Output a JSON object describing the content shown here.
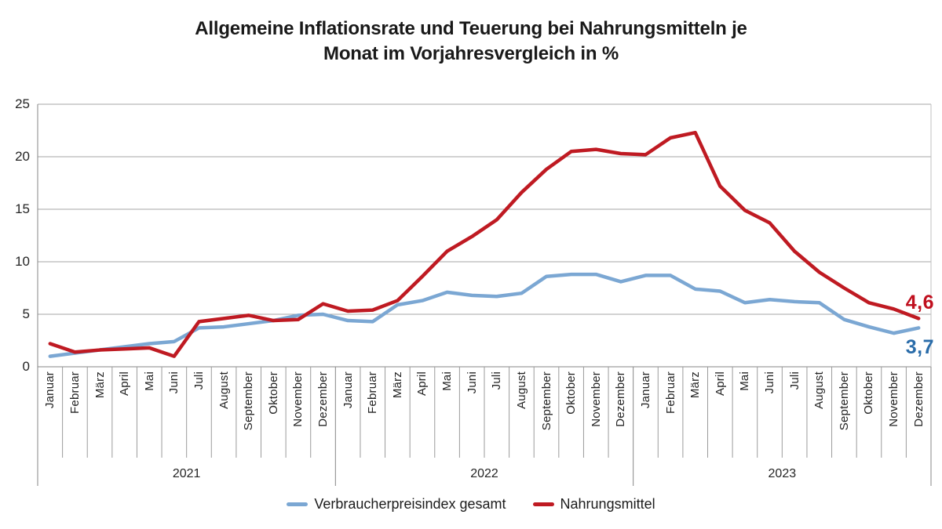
{
  "title": {
    "line1": "Allgemeine Inflationsrate und Teuerung bei Nahrungsmitteln je",
    "line2": "Monat im Vorjahresvergleich in %"
  },
  "end_labels": [
    {
      "text": "4,6",
      "color": "#c00f1e",
      "series": "Nahrungsmittel"
    },
    {
      "text": "3,7",
      "color": "#2a6ca9",
      "series": "Verbraucherpreisindex gesamt"
    }
  ],
  "colors": {
    "grid": "#a6a6a6",
    "axis": "#878787",
    "separator": "#9b9b9b",
    "right_border": "#c2c2c2",
    "text": "#242424"
  },
  "chart_data": {
    "type": "line",
    "title": "Allgemeine Inflationsrate und Teuerung bei Nahrungsmitteln je Monat im Vorjahresvergleich in %",
    "x_months": [
      "Januar",
      "Februar",
      "März",
      "April",
      "Mai",
      "Juni",
      "Juli",
      "August",
      "September",
      "Oktober",
      "November",
      "Dezember"
    ],
    "x_years": [
      "2021",
      "2022",
      "2023"
    ],
    "ylim": [
      0,
      25
    ],
    "y_ticks": [
      0,
      5,
      10,
      15,
      20,
      25
    ],
    "grid": "horizontal",
    "legend_position": "bottom",
    "series": [
      {
        "name": "Verbraucherpreisindex gesamt",
        "color": "#7ba7d3",
        "end_label": "3,7",
        "values": [
          1.0,
          1.3,
          1.6,
          1.9,
          2.2,
          2.4,
          3.7,
          3.8,
          4.1,
          4.4,
          4.9,
          5.0,
          4.4,
          4.3,
          5.9,
          6.3,
          7.1,
          6.8,
          6.7,
          7.0,
          8.6,
          8.8,
          8.8,
          8.1,
          8.7,
          8.7,
          7.4,
          7.2,
          6.1,
          6.4,
          6.2,
          6.1,
          4.5,
          3.8,
          3.2,
          3.7
        ]
      },
      {
        "name": "Nahrungsmittel",
        "color": "#bf1a22",
        "end_label": "4,6",
        "values": [
          2.2,
          1.4,
          1.6,
          1.7,
          1.8,
          1.0,
          4.3,
          4.6,
          4.9,
          4.4,
          4.5,
          6.0,
          5.3,
          5.4,
          6.3,
          8.6,
          11.0,
          12.4,
          14.0,
          16.6,
          18.8,
          20.5,
          20.7,
          20.3,
          20.2,
          21.8,
          22.3,
          17.2,
          14.9,
          13.7,
          11.0,
          9.0,
          7.5,
          6.1,
          5.5,
          4.6
        ]
      }
    ]
  }
}
